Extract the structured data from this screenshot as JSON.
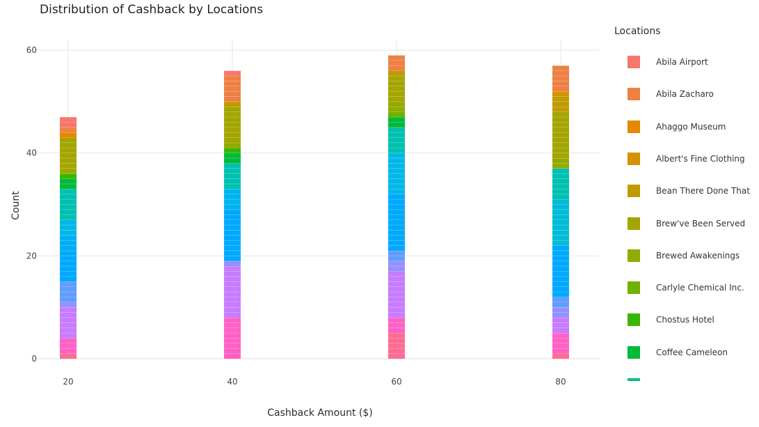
{
  "chart_data": {
    "type": "bar",
    "stacked": true,
    "title": "Distribution of Cashback by Locations",
    "xlabel": "Cashback Amount ($)",
    "ylabel": "Count",
    "xticks": [
      20,
      40,
      60,
      80
    ],
    "yticks": [
      0,
      20,
      40,
      60
    ],
    "xlim": [
      14,
      86
    ],
    "ylim": [
      0,
      62
    ],
    "grid": true,
    "legend_position": "right",
    "legend": {
      "title": "Locations",
      "entries": [
        {
          "name": "Abila Airport",
          "color": "#F8766D"
        },
        {
          "name": "Abila Zacharo",
          "color": "#EE8044"
        },
        {
          "name": "Ahaggo Museum",
          "color": "#E58700"
        },
        {
          "name": "Albert's Fine Clothing",
          "color": "#D39200"
        },
        {
          "name": "Bean There Done That",
          "color": "#C09B00"
        },
        {
          "name": "Brew've Been Served",
          "color": "#A3A500"
        },
        {
          "name": "Brewed Awakenings",
          "color": "#93AA00"
        },
        {
          "name": "Carlyle Chemical Inc.",
          "color": "#72B000"
        },
        {
          "name": "Chostus Hotel",
          "color": "#39B600"
        },
        {
          "name": "Coffee Cameleon",
          "color": "#00BA38"
        },
        {
          "name": "",
          "color": "#00BF7D"
        }
      ]
    },
    "bars": [
      {
        "x": 20,
        "total": 47,
        "segments": [
          {
            "color": "#FF6C91",
            "count": 1
          },
          {
            "color": "#FF61C3",
            "count": 3
          },
          {
            "color": "#C77CFF",
            "count": 6
          },
          {
            "color": "#9590FF",
            "count": 1
          },
          {
            "color": "#619CFF",
            "count": 4
          },
          {
            "color": "#00A9FF",
            "count": 6
          },
          {
            "color": "#00AEF6",
            "count": 3
          },
          {
            "color": "#00B8E7",
            "count": 3
          },
          {
            "color": "#00C0B0",
            "count": 6
          },
          {
            "color": "#00BA38",
            "count": 2
          },
          {
            "color": "#39B600",
            "count": 1
          },
          {
            "color": "#A3A500",
            "count": 7
          },
          {
            "color": "#E58700",
            "count": 1
          },
          {
            "color": "#EE8044",
            "count": 1
          },
          {
            "color": "#F8766D",
            "count": 2
          }
        ]
      },
      {
        "x": 40,
        "total": 56,
        "segments": [
          {
            "color": "#FF61C3",
            "count": 8
          },
          {
            "color": "#C77CFF",
            "count": 10
          },
          {
            "color": "#9590FF",
            "count": 1
          },
          {
            "color": "#00A9FF",
            "count": 10
          },
          {
            "color": "#00B4EF",
            "count": 4
          },
          {
            "color": "#00C0B0",
            "count": 5
          },
          {
            "color": "#00BA38",
            "count": 2
          },
          {
            "color": "#39B600",
            "count": 1
          },
          {
            "color": "#93AA00",
            "count": 1
          },
          {
            "color": "#A3A500",
            "count": 7
          },
          {
            "color": "#C09B00",
            "count": 1
          },
          {
            "color": "#EE8044",
            "count": 5
          },
          {
            "color": "#F8766D",
            "count": 1
          }
        ]
      },
      {
        "x": 60,
        "total": 59,
        "segments": [
          {
            "color": "#FF6C91",
            "count": 5
          },
          {
            "color": "#FF61C3",
            "count": 3
          },
          {
            "color": "#C77CFF",
            "count": 9
          },
          {
            "color": "#9590FF",
            "count": 2
          },
          {
            "color": "#619CFF",
            "count": 2
          },
          {
            "color": "#00A9FF",
            "count": 11
          },
          {
            "color": "#00B8E7",
            "count": 8
          },
          {
            "color": "#00C0B0",
            "count": 5
          },
          {
            "color": "#00BA38",
            "count": 2
          },
          {
            "color": "#72B000",
            "count": 1
          },
          {
            "color": "#93AA00",
            "count": 2
          },
          {
            "color": "#A3A500",
            "count": 5
          },
          {
            "color": "#C09B00",
            "count": 1
          },
          {
            "color": "#EE8044",
            "count": 3
          }
        ]
      },
      {
        "x": 80,
        "total": 57,
        "segments": [
          {
            "color": "#FF6C91",
            "count": 1
          },
          {
            "color": "#FF61C3",
            "count": 4
          },
          {
            "color": "#C77CFF",
            "count": 3
          },
          {
            "color": "#9590FF",
            "count": 2
          },
          {
            "color": "#619CFF",
            "count": 2
          },
          {
            "color": "#00A9FF",
            "count": 10
          },
          {
            "color": "#00BCD8",
            "count": 9
          },
          {
            "color": "#00C0B0",
            "count": 6
          },
          {
            "color": "#93AA00",
            "count": 2
          },
          {
            "color": "#A3A500",
            "count": 9
          },
          {
            "color": "#C09B00",
            "count": 3
          },
          {
            "color": "#D39200",
            "count": 1
          },
          {
            "color": "#EE8044",
            "count": 5
          }
        ]
      }
    ]
  }
}
